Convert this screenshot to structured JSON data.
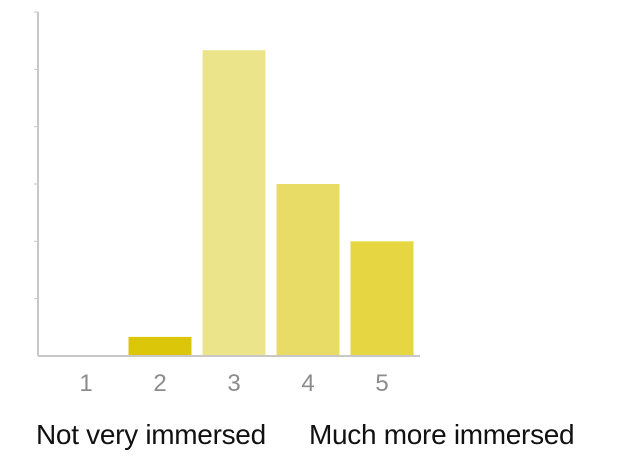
{
  "chart_data": {
    "type": "bar",
    "categories": [
      "1",
      "2",
      "3",
      "4",
      "5"
    ],
    "values": [
      0,
      1,
      16,
      9,
      6
    ],
    "ylim": [
      0,
      18
    ],
    "yticks": [
      0,
      3,
      6,
      9,
      12,
      15,
      18
    ],
    "grid": false,
    "colors": [
      "#e8d84a",
      "#dcc60a",
      "#ece48a",
      "#e8dc66",
      "#e6d642"
    ],
    "axis_color": "#c8c8c8",
    "tick_label_color": "#8c8c8c"
  },
  "scale_labels": {
    "low": "Not very immersed",
    "high": "Much more immersed"
  }
}
